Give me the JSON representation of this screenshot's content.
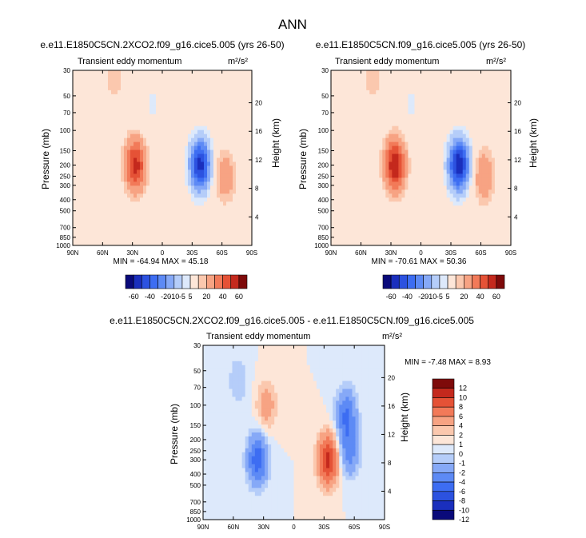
{
  "figure": {
    "title": "ANN"
  },
  "colors": {
    "diverging": [
      "#0a0a7a",
      "#1a2fbd",
      "#2c52e0",
      "#3d6df2",
      "#5d8af5",
      "#86a9f7",
      "#b5cdf9",
      "#dde9fb",
      "#fde6d8",
      "#fbc8ae",
      "#f7a383",
      "#f27a59",
      "#e55236",
      "#c4291d",
      "#7e0a0a"
    ]
  },
  "chart_data": [
    {
      "type": "heatmap",
      "title": "e.e11.E1850C5CN.2XCO2.f09_g16.cice5.005 (yrs 26-50)",
      "subtitle": "Transient eddy momentum",
      "units": "m²/s²",
      "xlabel": "",
      "ylabel": "Pressure (mb)",
      "ylabel_right": "Height (km)",
      "x_ticks": [
        "90N",
        "60N",
        "30N",
        "0",
        "30S",
        "60S",
        "90S"
      ],
      "y_ticks": [
        "30",
        "50",
        "70",
        "100",
        "150",
        "200",
        "250",
        "300",
        "400",
        "500",
        "700",
        "850",
        "1000"
      ],
      "y_right_ticks": [
        "20",
        "16",
        "12",
        "8",
        "4"
      ],
      "min": -64.94,
      "max": 45.18,
      "stats_text": "MIN = -64.94   MAX =  45.18",
      "colorbar_labels": [
        "-60",
        "-40",
        "-20",
        "-10",
        "-5",
        "5",
        "20",
        "40",
        "60"
      ],
      "features": [
        {
          "lat": 27,
          "p": 200,
          "value": 45.18
        },
        {
          "lat": -38,
          "p": 200,
          "value": -64.94
        },
        {
          "lat": -63,
          "p": 250,
          "value": 18
        },
        {
          "lat": 48,
          "p": 35,
          "value": 8
        },
        {
          "lat": 10,
          "p": 60,
          "value": -6
        }
      ]
    },
    {
      "type": "heatmap",
      "title": "e.e11.E1850C5CN.f09_g16.cice5.005 (yrs 26-50)",
      "subtitle": "Transient eddy momentum",
      "units": "m²/s²",
      "xlabel": "",
      "ylabel": "Pressure (mb)",
      "ylabel_right": "Height (km)",
      "x_ticks": [
        "90N",
        "60N",
        "30N",
        "0",
        "30S",
        "60S",
        "90S"
      ],
      "y_ticks": [
        "30",
        "50",
        "70",
        "100",
        "150",
        "200",
        "250",
        "300",
        "400",
        "500",
        "700",
        "850",
        "1000"
      ],
      "y_right_ticks": [
        "20",
        "16",
        "12",
        "8",
        "4"
      ],
      "min": -70.61,
      "max": 50.36,
      "stats_text": "MIN = -70.61   MAX =  50.36",
      "colorbar_labels": [
        "-60",
        "-40",
        "-20",
        "-10",
        "-5",
        "5",
        "20",
        "40",
        "60"
      ],
      "features": [
        {
          "lat": 26,
          "p": 200,
          "value": 50.36
        },
        {
          "lat": -38,
          "p": 200,
          "value": -70.61
        },
        {
          "lat": -63,
          "p": 250,
          "value": 20
        },
        {
          "lat": 48,
          "p": 35,
          "value": 8
        },
        {
          "lat": 10,
          "p": 60,
          "value": -6
        }
      ]
    },
    {
      "type": "heatmap",
      "title": "e.e11.E1850C5CN.2XCO2.f09_g16.cice5.005 - e.e11.E1850C5CN.f09_g16.cice5.005",
      "subtitle": "Transient eddy momentum",
      "units": "m²/s²",
      "xlabel": "",
      "ylabel": "Pressure (mb)",
      "ylabel_right": "Height (km)",
      "x_ticks": [
        "90N",
        "60N",
        "30N",
        "0",
        "30S",
        "60S",
        "90S"
      ],
      "y_ticks": [
        "30",
        "50",
        "70",
        "100",
        "150",
        "200",
        "250",
        "300",
        "400",
        "500",
        "700",
        "850",
        "1000"
      ],
      "y_right_ticks": [
        "20",
        "16",
        "12",
        "8",
        "4"
      ],
      "min": -7.48,
      "max": 8.93,
      "stats_text": "MIN = -7.48   MAX =   8.93",
      "colorbar_labels": [
        "12",
        "10",
        "8",
        "6",
        "4",
        "2",
        "1",
        "0",
        "-1",
        "-2",
        "-4",
        "-6",
        "-8",
        "-10",
        "-12"
      ],
      "features": [
        {
          "lat": 36,
          "p": 300,
          "value": -7.48
        },
        {
          "lat": -34,
          "p": 300,
          "value": 8.93
        },
        {
          "lat": -52,
          "p": 120,
          "value": -6
        },
        {
          "lat": 27,
          "p": 100,
          "value": 3
        },
        {
          "lat": -55,
          "p": 250,
          "value": -5
        },
        {
          "lat": 55,
          "p": 60,
          "value": -2
        }
      ]
    }
  ]
}
